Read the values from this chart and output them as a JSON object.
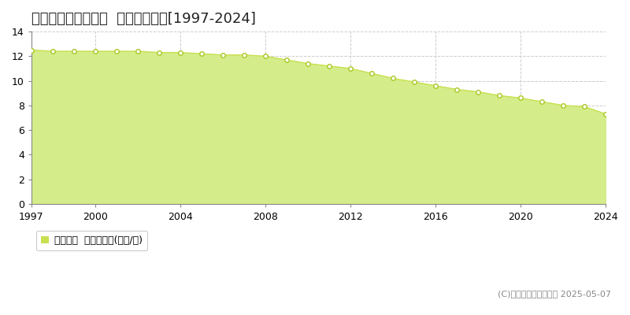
{
  "title": "鹿足郡津和野町中座  基準地価推移[1997-2024]",
  "years": [
    1997,
    1998,
    1999,
    2000,
    2001,
    2002,
    2003,
    2004,
    2005,
    2006,
    2007,
    2008,
    2009,
    2010,
    2011,
    2012,
    2013,
    2014,
    2015,
    2016,
    2017,
    2018,
    2019,
    2020,
    2021,
    2022,
    2023,
    2024
  ],
  "values": [
    12.5,
    12.4,
    12.4,
    12.4,
    12.4,
    12.4,
    12.3,
    12.3,
    12.2,
    12.1,
    12.1,
    12.0,
    11.7,
    11.4,
    11.2,
    11.0,
    10.6,
    10.2,
    9.9,
    9.6,
    9.3,
    9.1,
    8.8,
    8.6,
    8.3,
    8.0,
    7.9,
    7.3
  ],
  "ylim": [
    0,
    14
  ],
  "yticks": [
    0,
    2,
    4,
    6,
    8,
    10,
    12,
    14
  ],
  "xticks": [
    1997,
    2000,
    2004,
    2008,
    2012,
    2016,
    2020,
    2024
  ],
  "fill_color": "#d4ed8a",
  "line_color": "#c8e050",
  "marker_facecolor": "#ffffff",
  "marker_edgecolor": "#a8c820",
  "grid_color": "#cccccc",
  "bg_color": "#ffffff",
  "plot_bg_color": "#ffffff",
  "legend_label": "基準地価  平均坪単価(万円/坪)",
  "legend_marker_color": "#c8e050",
  "copyright_text": "(C)土地価格ドットコム 2025-05-07",
  "title_fontsize": 13,
  "tick_fontsize": 9,
  "legend_fontsize": 9,
  "copyright_fontsize": 8
}
